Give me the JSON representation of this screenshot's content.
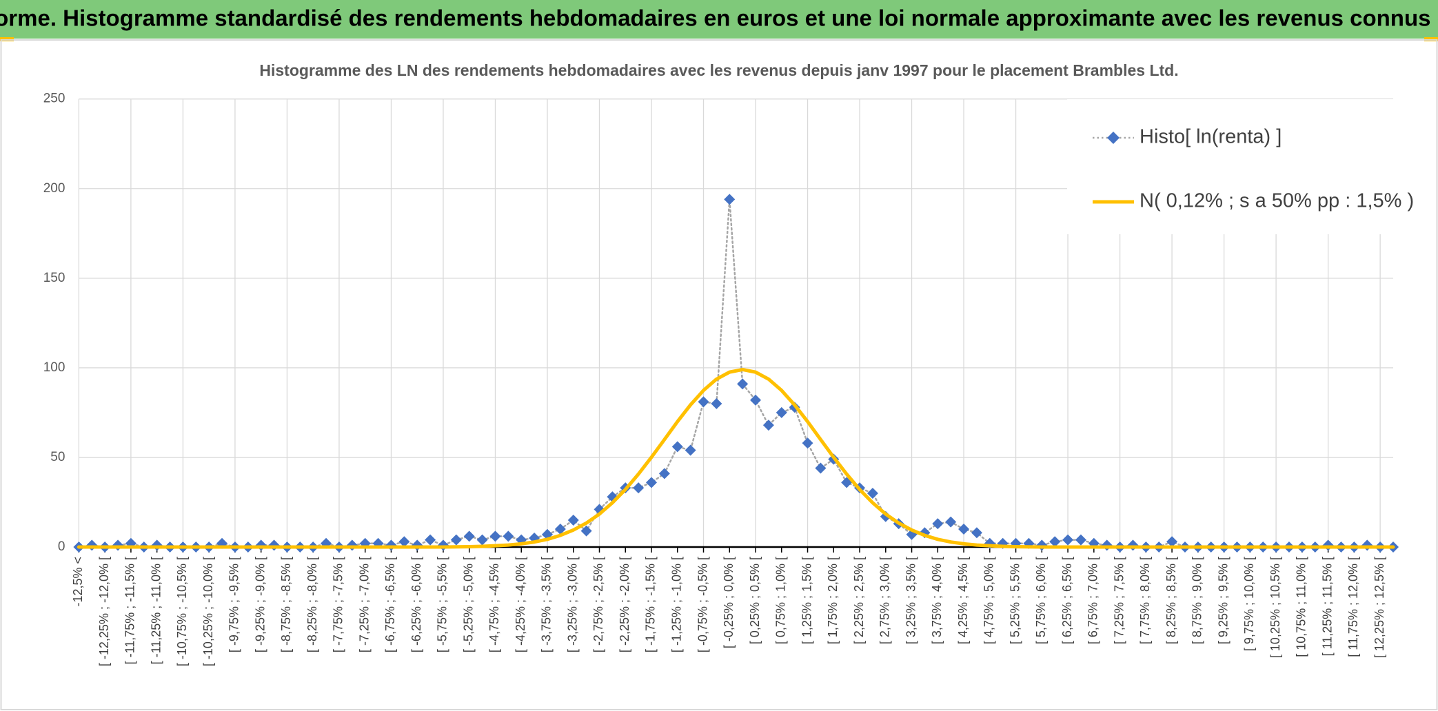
{
  "chart_data": {
    "type": "line",
    "title": "ADAM Informe. Histogramme standardisé des rendements hebdomadaires en euros et une loi normale approximante avec les revenus connus distribués",
    "subtitle": "Histogramme des LN des rendements hebdomadaires avec les revenus depuis janv 1997 pour le placement Brambles Ltd.",
    "categories": [
      "-12,5% <",
      null,
      "[ -12,25% ; -12,0% [",
      null,
      "[ -11,75% ; -11,5% [",
      null,
      "[ -11,25% ; -11,0% [",
      null,
      "[ -10,75% ; -10,5% [",
      null,
      "[ -10,25% ; -10,0% [",
      null,
      "[ -9,75% ; -9,5% [",
      null,
      "[ -9,25% ; -9,0% [",
      null,
      "[ -8,75% ; -8,5% [",
      null,
      "[ -8,25% ; -8,0% [",
      null,
      "[ -7,75% ; -7,5% [",
      null,
      "[ -7,25% ; -7,0% [",
      null,
      "[ -6,75% ; -6,5% [",
      null,
      "[ -6,25% ; -6,0% [",
      null,
      "[ -5,75% ; -5,5% [",
      null,
      "[ -5,25% ; -5,0% [",
      null,
      "[ -4,75% ; -4,5% [",
      null,
      "[ -4,25% ; -4,0% [",
      null,
      "[ -3,75% ; -3,5% [",
      null,
      "[ -3,25% ; -3,0% [",
      null,
      "[ -2,75% ; -2,5% [",
      null,
      "[ -2,25% ; -2,0% [",
      null,
      "[ -1,75% ; -1,5% [",
      null,
      "[ -1,25% ; -1,0% [",
      null,
      "[ -0,75% ; -0,5% [",
      null,
      "[ -0,25% ; 0,0% [",
      null,
      "[ 0,25% ; 0,5% [",
      null,
      "[ 0,75% ; 1,0% [",
      null,
      "[ 1,25% ; 1,5% [",
      null,
      "[ 1,75% ; 2,0% [",
      null,
      "[ 2,25% ; 2,5% [",
      null,
      "[ 2,75% ; 3,0% [",
      null,
      "[ 3,25% ; 3,5% [",
      null,
      "[ 3,75% ; 4,0% [",
      null,
      "[ 4,25% ; 4,5% [",
      null,
      "[ 4,75% ; 5,0% [",
      null,
      "[ 5,25% ; 5,5% [",
      null,
      "[ 5,75% ; 6,0% [",
      null,
      "[ 6,25% ; 6,5% [",
      null,
      "[ 6,75% ; 7,0% [",
      null,
      "[ 7,25% ; 7,5% [",
      null,
      "[ 7,75% ; 8,0% [",
      null,
      "[ 8,25% ; 8,5% [",
      null,
      "[ 8,75% ; 9,0% [",
      null,
      "[ 9,25% ; 9,5% [",
      null,
      "[ 9,75% ; 10,0% [",
      null,
      "[ 10,25% ; 10,5% [",
      null,
      "[ 10,75% ; 11,0% [",
      null,
      "[ 11,25% ; 11,5% [",
      null,
      "[ 11,75% ; 12,0% [",
      null,
      "[ 12,25% ; 12,5% [",
      null
    ],
    "series": [
      {
        "name": "Histo[ ln(renta) ]",
        "color": "#4472c4",
        "line_color": "#a6a6a6",
        "line_style": "dotted",
        "marker": "diamond",
        "values": [
          0,
          1,
          0,
          1,
          2,
          0,
          1,
          0,
          0,
          0,
          0,
          2,
          0,
          0,
          1,
          1,
          0,
          0,
          0,
          2,
          0,
          1,
          2,
          2,
          1,
          3,
          1,
          4,
          1,
          4,
          6,
          4,
          6,
          6,
          4,
          5,
          7,
          10,
          15,
          9,
          21,
          28,
          33,
          33,
          36,
          41,
          56,
          54,
          81,
          80,
          194,
          91,
          82,
          68,
          75,
          78,
          58,
          44,
          49,
          36,
          33,
          30,
          17,
          13,
          7,
          8,
          13,
          14,
          10,
          8,
          2,
          2,
          2,
          2,
          1,
          3,
          4,
          4,
          2,
          1,
          0,
          1,
          0,
          0,
          3,
          0,
          0,
          0,
          0,
          0,
          0,
          0,
          0,
          0,
          0,
          0,
          1,
          0,
          0,
          1,
          0,
          0
        ]
      },
      {
        "name": "N( 0,12% ; s a 50% pp : 1,5% )",
        "color": "#ffc000",
        "line_style": "solid",
        "values": [
          0,
          0,
          0,
          0,
          0,
          0,
          0,
          0,
          0,
          0,
          0,
          0,
          0,
          0,
          0,
          0,
          0,
          0,
          0,
          0,
          0,
          0,
          0,
          0,
          0,
          0,
          0,
          0,
          0,
          0.1,
          0.2,
          0.4,
          0.7,
          1.1,
          1.8,
          2.8,
          4.3,
          6.5,
          9.5,
          13.4,
          18.4,
          24.7,
          32.1,
          40.7,
          50.1,
          60.0,
          70.0,
          79.3,
          87.4,
          93.7,
          97.6,
          99,
          97.6,
          93.7,
          87.4,
          79.3,
          70.0,
          60.0,
          50.1,
          40.7,
          32.1,
          24.7,
          18.4,
          13.4,
          9.5,
          6.5,
          4.3,
          2.8,
          1.8,
          1.1,
          0.7,
          0.4,
          0.2,
          0.1,
          0,
          0,
          0,
          0,
          0,
          0,
          0,
          0,
          0,
          0,
          0,
          0,
          0,
          0,
          0,
          0,
          0,
          0,
          0,
          0,
          0,
          0,
          0,
          0,
          0,
          0,
          0,
          0
        ]
      }
    ],
    "ylim": [
      0,
      250
    ],
    "yticks": [
      0,
      50,
      100,
      150,
      200,
      250
    ],
    "grid": true,
    "legend": "top right"
  }
}
